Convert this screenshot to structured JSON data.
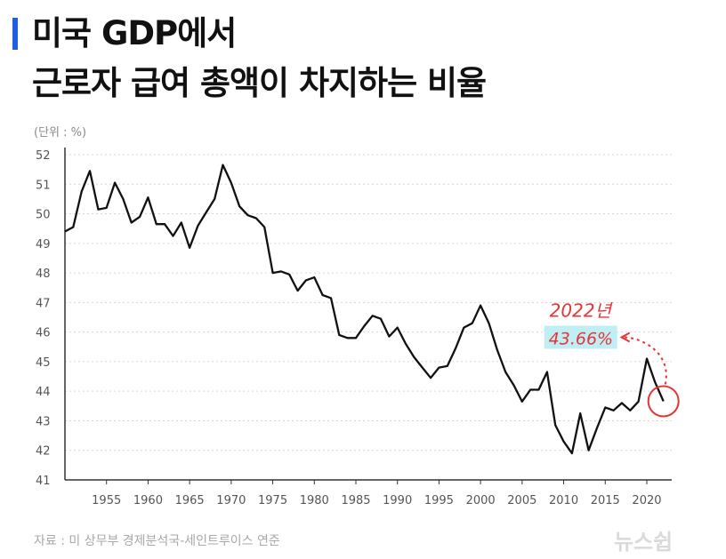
{
  "header": {
    "title_line1": "미국 GDP에서",
    "title_line2": "근로자 급여 총액이 차지하는 비율",
    "accent_color": "#1f5fe0"
  },
  "unit_label": "(단위 : %)",
  "footer": {
    "source": "자료 : 미 상무부 경제분석국-세인트루이스 연준",
    "logo": "뉴스쉽"
  },
  "chart_data": {
    "type": "line",
    "title": "미국 GDP에서 근로자 급여 총액이 차지하는 비율",
    "unit": "%",
    "xlabel": "",
    "ylabel": "",
    "xlim": [
      1950,
      2023
    ],
    "ylim": [
      41,
      52
    ],
    "yticks": [
      "41",
      "42",
      "43",
      "44",
      "45",
      "46",
      "47",
      "48",
      "49",
      "50",
      "51",
      "52"
    ],
    "xticks": [
      "1955",
      "1960",
      "1965",
      "1970",
      "1975",
      "1980",
      "1985",
      "1990",
      "1995",
      "2000",
      "2005",
      "2010",
      "2015",
      "2020"
    ],
    "series": [
      {
        "name": "근로자 급여 총액 비율",
        "color": "#111111",
        "x": [
          1950,
          1951,
          1952,
          1953,
          1954,
          1955,
          1956,
          1957,
          1958,
          1959,
          1960,
          1961,
          1962,
          1963,
          1964,
          1965,
          1966,
          1967,
          1968,
          1969,
          1970,
          1971,
          1972,
          1973,
          1974,
          1975,
          1976,
          1977,
          1978,
          1979,
          1980,
          1981,
          1982,
          1983,
          1984,
          1985,
          1986,
          1987,
          1988,
          1989,
          1990,
          1991,
          1992,
          1993,
          1994,
          1995,
          1996,
          1997,
          1998,
          1999,
          2000,
          2001,
          2002,
          2003,
          2004,
          2005,
          2006,
          2007,
          2008,
          2009,
          2010,
          2011,
          2012,
          2013,
          2014,
          2015,
          2016,
          2017,
          2018,
          2019,
          2020,
          2021,
          2022
        ],
        "values": [
          49.4,
          49.55,
          50.75,
          51.45,
          50.15,
          50.2,
          51.05,
          50.5,
          49.7,
          49.9,
          50.55,
          49.65,
          49.65,
          49.25,
          49.7,
          48.85,
          49.6,
          50.05,
          50.5,
          51.65,
          51.05,
          50.25,
          49.95,
          49.85,
          49.55,
          48.0,
          48.05,
          47.95,
          47.4,
          47.75,
          47.85,
          47.25,
          47.15,
          45.9,
          45.8,
          45.8,
          46.2,
          46.55,
          46.45,
          45.85,
          46.15,
          45.6,
          45.15,
          44.8,
          44.45,
          44.8,
          44.85,
          45.45,
          46.15,
          46.3,
          46.9,
          46.3,
          45.4,
          44.65,
          44.2,
          43.65,
          44.05,
          44.05,
          44.65,
          42.85,
          42.3,
          41.9,
          43.25,
          42.0,
          42.75,
          43.45,
          43.35,
          43.6,
          43.35,
          43.65,
          45.1,
          44.3,
          43.66
        ]
      }
    ],
    "annotation": {
      "year_label": "2022년",
      "value_label": "43.66%",
      "x": 2022,
      "y": 43.66,
      "color": "#e53535",
      "highlight": "#bfeff4"
    }
  }
}
